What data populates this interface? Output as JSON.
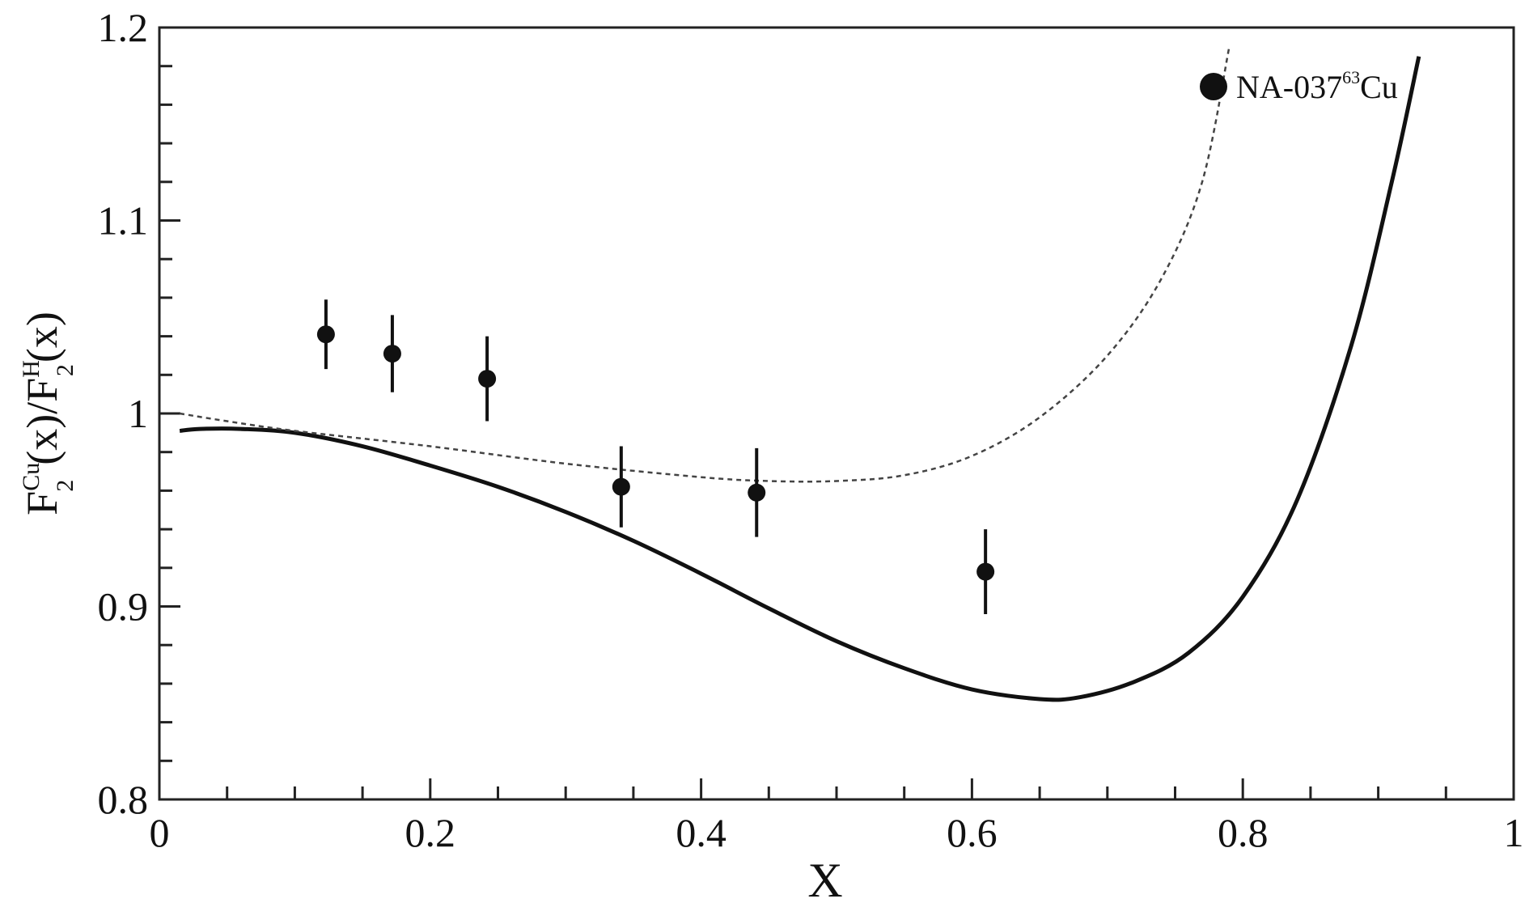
{
  "chart_data": {
    "type": "scatter",
    "title": "",
    "xlabel": "X",
    "ylabel": {
      "F": "F",
      "sub1": "2",
      "sup1": "Cu",
      "mid": "(x)/F",
      "sub2": "2",
      "sup2": "H",
      "end": "(x)"
    },
    "xlim": [
      0,
      1
    ],
    "ylim": [
      0.8,
      1.2
    ],
    "x_ticks": [
      {
        "value": 0,
        "label": "0"
      },
      {
        "value": 0.2,
        "label": "0.2"
      },
      {
        "value": 0.4,
        "label": "0.4"
      },
      {
        "value": 0.6,
        "label": "0.6"
      },
      {
        "value": 0.8,
        "label": "0.8"
      },
      {
        "value": 1,
        "label": "1"
      }
    ],
    "y_ticks": [
      {
        "value": 0.8,
        "label": "0.8"
      },
      {
        "value": 0.9,
        "label": "0.9"
      },
      {
        "value": 1.0,
        "label": "1"
      },
      {
        "value": 1.1,
        "label": "1.1"
      },
      {
        "value": 1.2,
        "label": "1.2"
      }
    ],
    "grid": false,
    "legend_position": "top-right",
    "series": [
      {
        "name": "NA-037 63Cu",
        "legend_main": "NA-037",
        "legend_sup": "63",
        "legend_after": "Cu",
        "kind": "points_with_error",
        "points": [
          {
            "x": 0.123,
            "y": 1.041,
            "err": 0.018
          },
          {
            "x": 0.172,
            "y": 1.031,
            "err": 0.02
          },
          {
            "x": 0.242,
            "y": 1.018,
            "err": 0.022
          },
          {
            "x": 0.341,
            "y": 0.962,
            "err": 0.021
          },
          {
            "x": 0.441,
            "y": 0.959,
            "err": 0.023
          },
          {
            "x": 0.61,
            "y": 0.918,
            "err": 0.022
          }
        ]
      },
      {
        "kind": "solid_line",
        "points": [
          {
            "x": 0.015,
            "y": 0.991
          },
          {
            "x": 0.03,
            "y": 0.992
          },
          {
            "x": 0.06,
            "y": 0.992
          },
          {
            "x": 0.1,
            "y": 0.99
          },
          {
            "x": 0.15,
            "y": 0.983
          },
          {
            "x": 0.2,
            "y": 0.973
          },
          {
            "x": 0.25,
            "y": 0.962
          },
          {
            "x": 0.3,
            "y": 0.949
          },
          {
            "x": 0.35,
            "y": 0.934
          },
          {
            "x": 0.4,
            "y": 0.917
          },
          {
            "x": 0.45,
            "y": 0.899
          },
          {
            "x": 0.5,
            "y": 0.882
          },
          {
            "x": 0.55,
            "y": 0.868
          },
          {
            "x": 0.6,
            "y": 0.857
          },
          {
            "x": 0.65,
            "y": 0.852
          },
          {
            "x": 0.68,
            "y": 0.853
          },
          {
            "x": 0.72,
            "y": 0.861
          },
          {
            "x": 0.76,
            "y": 0.876
          },
          {
            "x": 0.8,
            "y": 0.905
          },
          {
            "x": 0.84,
            "y": 0.955
          },
          {
            "x": 0.88,
            "y": 1.035
          },
          {
            "x": 0.91,
            "y": 1.12
          },
          {
            "x": 0.93,
            "y": 1.185
          }
        ]
      },
      {
        "kind": "dashed_line",
        "points": [
          {
            "x": 0.015,
            "y": 1.0
          },
          {
            "x": 0.05,
            "y": 0.996
          },
          {
            "x": 0.1,
            "y": 0.991
          },
          {
            "x": 0.2,
            "y": 0.983
          },
          {
            "x": 0.3,
            "y": 0.974
          },
          {
            "x": 0.4,
            "y": 0.967
          },
          {
            "x": 0.45,
            "y": 0.965
          },
          {
            "x": 0.5,
            "y": 0.965
          },
          {
            "x": 0.55,
            "y": 0.968
          },
          {
            "x": 0.6,
            "y": 0.978
          },
          {
            "x": 0.65,
            "y": 0.998
          },
          {
            "x": 0.7,
            "y": 1.03
          },
          {
            "x": 0.74,
            "y": 1.07
          },
          {
            "x": 0.77,
            "y": 1.12
          },
          {
            "x": 0.79,
            "y": 1.19
          }
        ]
      }
    ]
  }
}
